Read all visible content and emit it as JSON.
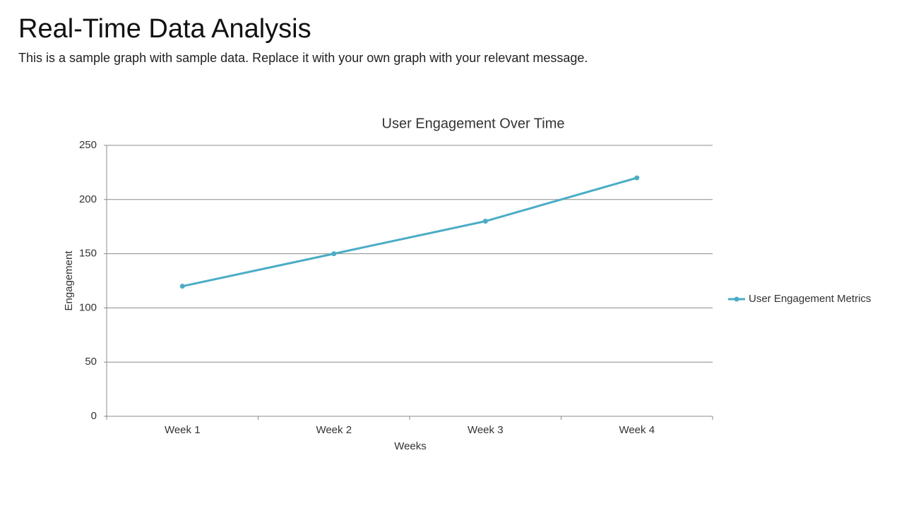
{
  "header": {
    "title": "Real-Time Data Analysis",
    "subtitle": "This is a sample graph with sample data. Replace it with your own graph with your relevant message."
  },
  "chart_data": {
    "type": "line",
    "title": "User Engagement Over Time",
    "x_label": "Weeks",
    "y_label": "Engagement",
    "categories": [
      "Week 1",
      "Week 2",
      "Week 3",
      "Week 4"
    ],
    "series": [
      {
        "name": "User Engagement Metrics",
        "color": "#4bacc6",
        "values": [
          120,
          150,
          180,
          220
        ]
      }
    ],
    "ylim": [
      0,
      250
    ],
    "yticks": [
      0,
      50,
      100,
      150,
      200,
      250
    ],
    "grid": true,
    "legend": "right"
  }
}
